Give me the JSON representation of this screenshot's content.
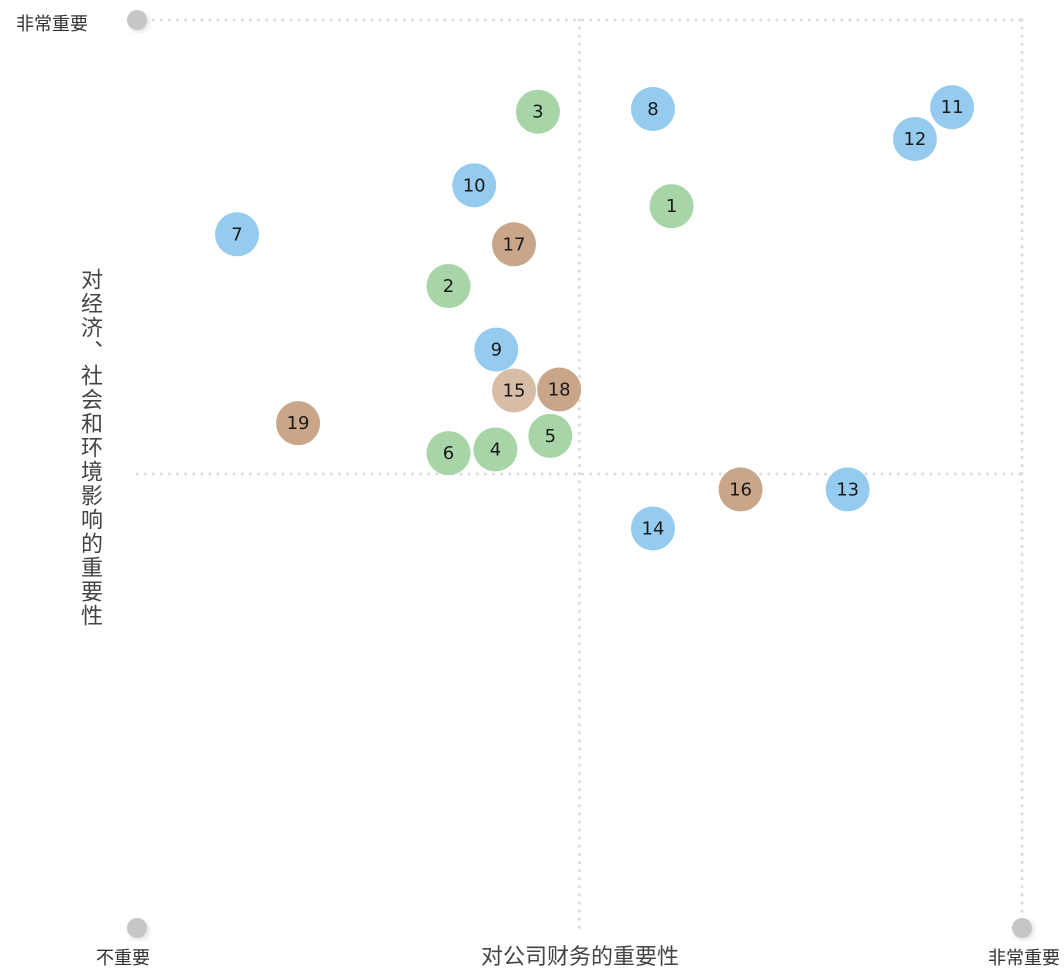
{
  "labels": {
    "y_top": "非常重要",
    "x_min": "不重要",
    "x_max": "非常重要",
    "x_title": "对公司财务的重要性",
    "y_title": "对经济、社会和环境影响的重要性"
  },
  "colors": {
    "green": "#a8d5a8",
    "blue": "#95cbee",
    "brown": "#c9a68a",
    "light_brown": "#d8bda6",
    "axis": "#c6c6c8",
    "grid": "#dcdcdc"
  },
  "chart_data": {
    "type": "scatter",
    "xlim": [
      0,
      100
    ],
    "ylim": [
      0,
      100
    ],
    "quadrant_dividers": {
      "x": 50,
      "y": 50
    },
    "points": [
      {
        "label": "1",
        "x": 60.4,
        "y": 79.5,
        "color": "green"
      },
      {
        "label": "2",
        "x": 35.2,
        "y": 70.7,
        "color": "green"
      },
      {
        "label": "3",
        "x": 45.3,
        "y": 89.9,
        "color": "green"
      },
      {
        "label": "4",
        "x": 40.5,
        "y": 52.7,
        "color": "green"
      },
      {
        "label": "5",
        "x": 46.7,
        "y": 54.2,
        "color": "green"
      },
      {
        "label": "6",
        "x": 35.2,
        "y": 52.3,
        "color": "green"
      },
      {
        "label": "7",
        "x": 11.3,
        "y": 76.4,
        "color": "blue"
      },
      {
        "label": "8",
        "x": 58.3,
        "y": 90.2,
        "color": "blue"
      },
      {
        "label": "9",
        "x": 40.6,
        "y": 63.7,
        "color": "blue"
      },
      {
        "label": "10",
        "x": 38.1,
        "y": 81.8,
        "color": "blue"
      },
      {
        "label": "11",
        "x": 92.1,
        "y": 90.4,
        "color": "blue"
      },
      {
        "label": "12",
        "x": 87.9,
        "y": 86.9,
        "color": "blue"
      },
      {
        "label": "13",
        "x": 80.3,
        "y": 48.3,
        "color": "blue"
      },
      {
        "label": "14",
        "x": 58.3,
        "y": 44.0,
        "color": "blue"
      },
      {
        "label": "15",
        "x": 42.6,
        "y": 59.2,
        "color": "light_brown"
      },
      {
        "label": "16",
        "x": 68.2,
        "y": 48.3,
        "color": "brown"
      },
      {
        "label": "17",
        "x": 42.6,
        "y": 75.3,
        "color": "brown"
      },
      {
        "label": "18",
        "x": 47.7,
        "y": 59.3,
        "color": "brown"
      },
      {
        "label": "19",
        "x": 18.2,
        "y": 55.6,
        "color": "brown"
      }
    ]
  }
}
